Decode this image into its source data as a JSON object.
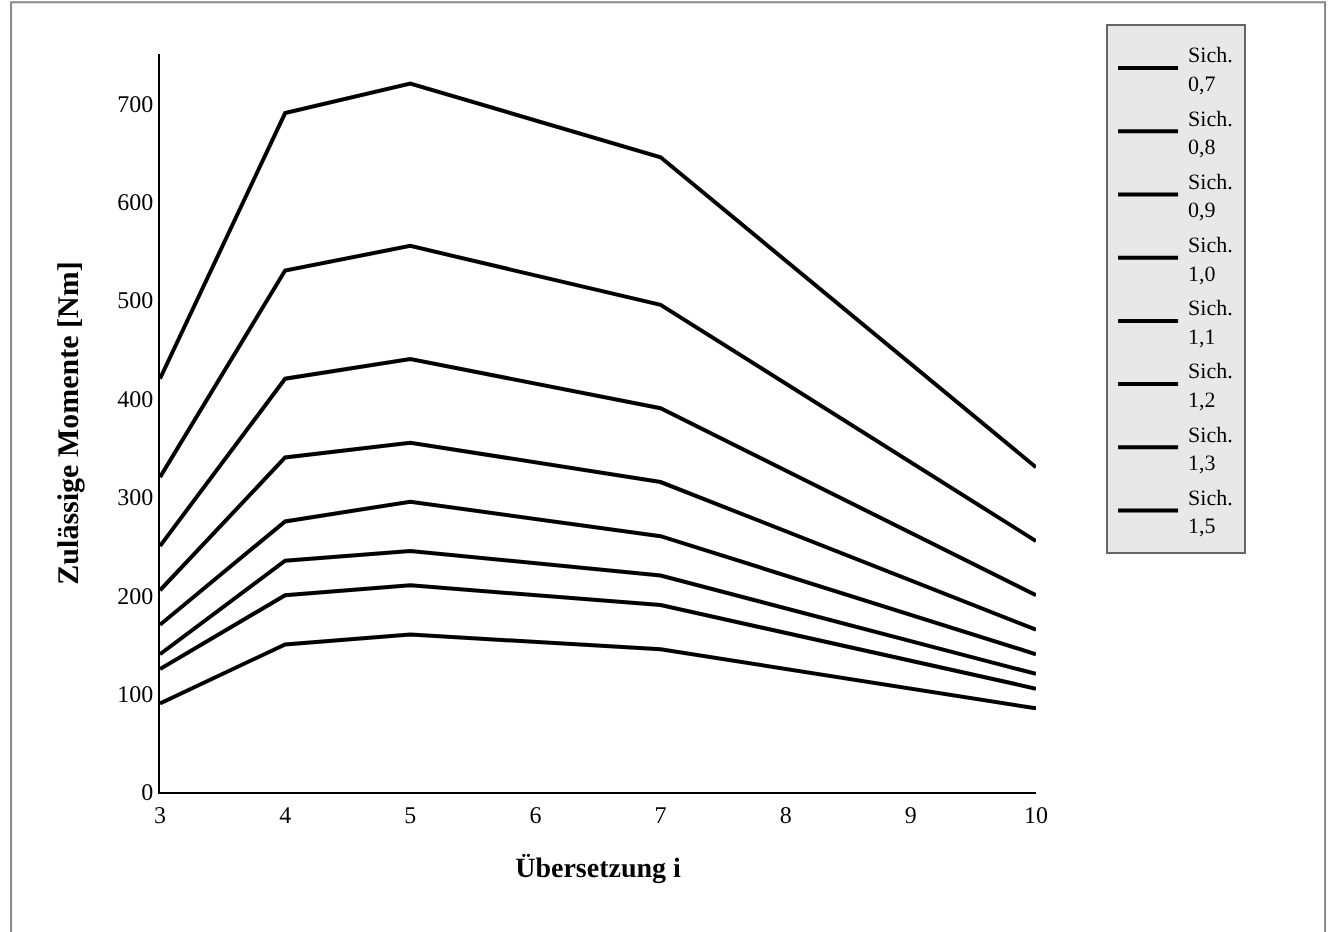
{
  "chart_data": {
    "type": "line",
    "xlabel": "Übersetzung i",
    "ylabel": "Zulässige Momente [Nm]",
    "x": [
      3,
      4,
      5,
      7,
      10
    ],
    "series": [
      {
        "name": "Sich. 0,7",
        "color": "#000000",
        "values": [
          420,
          690,
          720,
          645,
          330
        ]
      },
      {
        "name": "Sich. 0,8",
        "color": "#000000",
        "values": [
          320,
          530,
          555,
          495,
          255
        ]
      },
      {
        "name": "Sich. 0,9",
        "color": "#000000",
        "values": [
          250,
          420,
          440,
          390,
          200
        ]
      },
      {
        "name": "Sich. 1,0",
        "color": "#000000",
        "values": [
          205,
          340,
          355,
          315,
          165
        ]
      },
      {
        "name": "Sich. 1,1",
        "color": "#000000",
        "values": [
          170,
          275,
          295,
          260,
          140
        ]
      },
      {
        "name": "Sich. 1,2",
        "color": "#000000",
        "values": [
          140,
          235,
          245,
          220,
          120
        ]
      },
      {
        "name": "Sich. 1,3",
        "color": "#000000",
        "values": [
          125,
          200,
          210,
          190,
          105
        ]
      },
      {
        "name": "Sich. 1,5",
        "color": "#000000",
        "values": [
          90,
          150,
          160,
          145,
          85
        ]
      }
    ],
    "xlim": [
      3,
      10
    ],
    "xticks": [
      3,
      4,
      5,
      6,
      7,
      8,
      9,
      10
    ],
    "ylim": [
      0,
      750
    ],
    "yticks": [
      0,
      100,
      200,
      300,
      400,
      500,
      600,
      700
    ],
    "legend": "right",
    "marker": "none",
    "line_style": "solid"
  }
}
